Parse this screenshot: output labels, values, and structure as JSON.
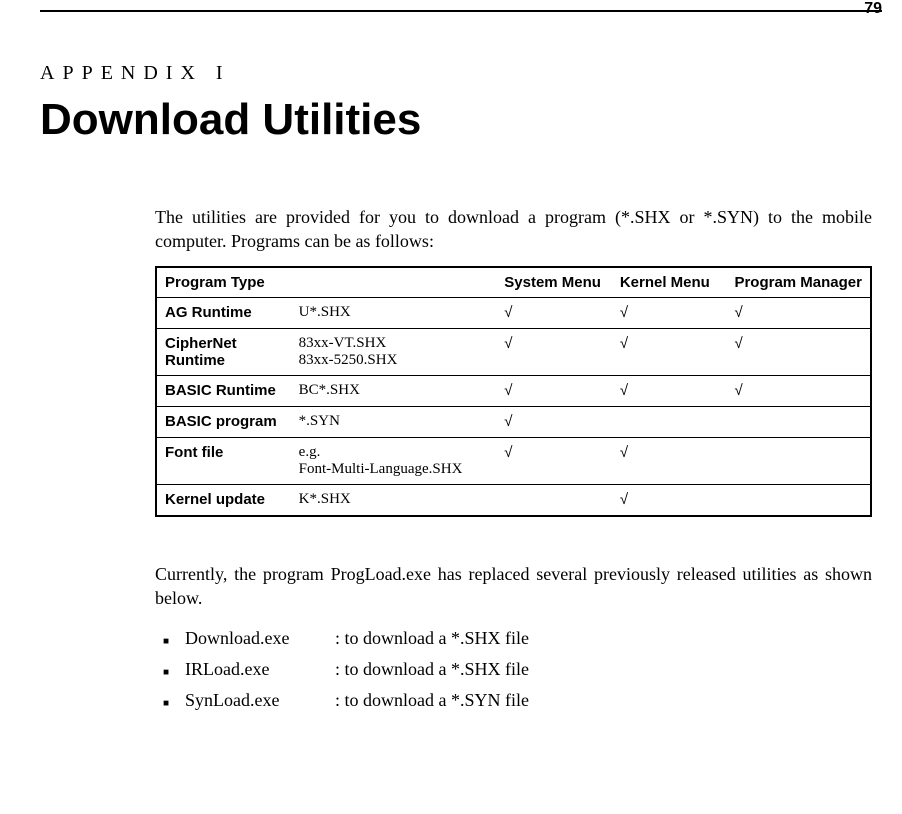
{
  "page_number": "79",
  "appendix_label": "APPENDIX I",
  "title": "Download Utilities",
  "intro": "The utilities are provided for you to download a program (*.SHX or *.SYN) to the mobile computer. Programs can be as follows:",
  "check_glyph": "√",
  "table": {
    "headers": [
      "Program Type",
      "",
      "System Menu",
      "Kernel Menu",
      "Program Manager"
    ],
    "rows": [
      {
        "type": "AG Runtime",
        "file": "U*.SHX",
        "sys": true,
        "ker": true,
        "pm": true
      },
      {
        "type": "CipherNet Runtime",
        "file": "83xx-VT.SHX\n83xx-5250.SHX",
        "sys": true,
        "ker": true,
        "pm": true
      },
      {
        "type": "BASIC Runtime",
        "file": "BC*.SHX",
        "sys": true,
        "ker": true,
        "pm": true
      },
      {
        "type": "BASIC program",
        "file": "*.SYN",
        "sys": true,
        "ker": false,
        "pm": false
      },
      {
        "type": "Font file",
        "file": "e.g.\nFont-Multi-Language.SHX",
        "sys": true,
        "ker": true,
        "pm": false
      },
      {
        "type": "Kernel update",
        "file": "K*.SHX",
        "sys": false,
        "ker": true,
        "pm": false
      }
    ]
  },
  "para2": "Currently, the program ProgLoad.exe has replaced several previously released utilities as shown below.",
  "utilities": [
    {
      "name": "Download.exe",
      "desc": ": to download a *.SHX file"
    },
    {
      "name": "IRLoad.exe",
      "desc": ": to download a *.SHX file"
    },
    {
      "name": "SynLoad.exe",
      "desc": ": to download a *.SYN file"
    }
  ]
}
